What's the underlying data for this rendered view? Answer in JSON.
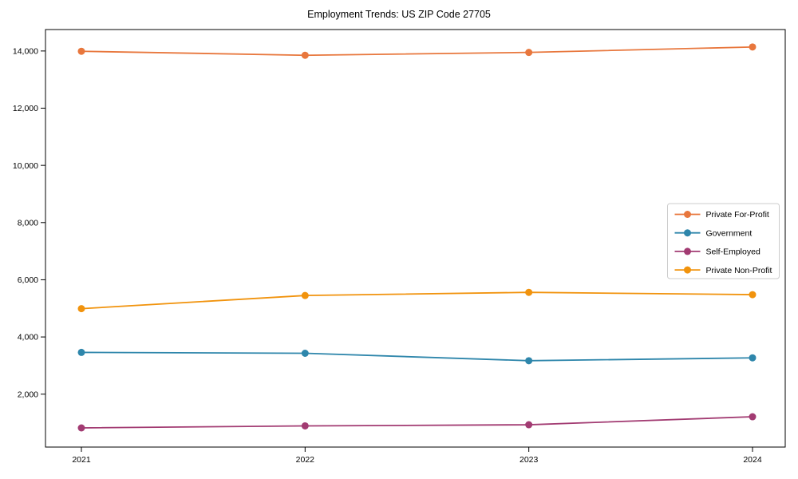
{
  "chart_data": {
    "type": "line",
    "title": "Employment Trends: US ZIP Code 27705",
    "x_categories": [
      "2021",
      "2022",
      "2023",
      "2024"
    ],
    "series": [
      {
        "name": "Private For-Profit",
        "color": "#E8773D",
        "values": [
          13990,
          13850,
          13950,
          14140
        ]
      },
      {
        "name": "Government",
        "color": "#2E86AB",
        "values": [
          3460,
          3430,
          3170,
          3270
        ]
      },
      {
        "name": "Self-Employed",
        "color": "#A23B72",
        "values": [
          820,
          890,
          930,
          1210
        ]
      },
      {
        "name": "Private Non-Profit",
        "color": "#F1930D",
        "values": [
          4990,
          5450,
          5560,
          5480
        ]
      }
    ],
    "yticks": [
      2000,
      4000,
      6000,
      8000,
      10000,
      12000,
      14000
    ],
    "ytick_labels": [
      "2,000",
      "4,000",
      "6,000",
      "8,000",
      "10,000",
      "12,000",
      "14,000"
    ],
    "ylim": [
      150,
      14750
    ],
    "grid": false,
    "legend_position": "center-right",
    "axis_color": "#000000",
    "background_color": "#ffffff",
    "marker": "circle"
  }
}
